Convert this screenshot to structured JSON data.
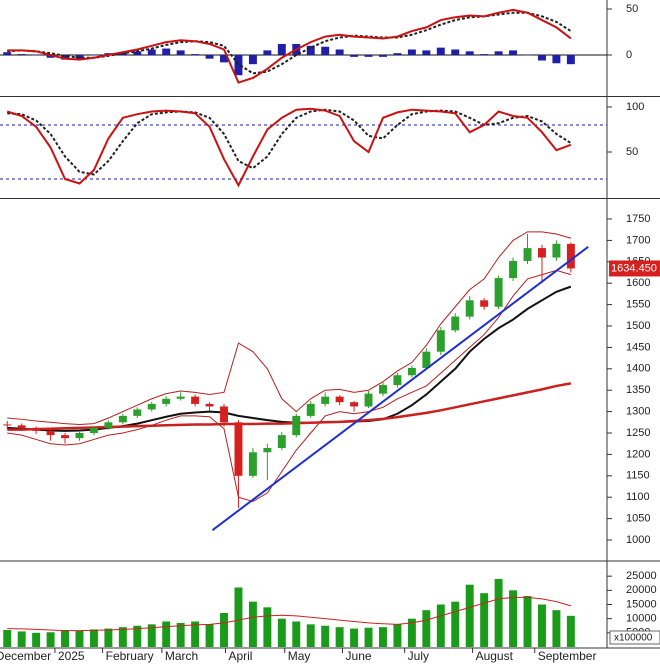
{
  "chart_data": [
    {
      "type": "indicator",
      "ylim": [
        -43.5,
        59.8
      ],
      "yticks": [
        0,
        50
      ],
      "ref_lines": [
        0
      ],
      "series": [
        {
          "kind": "bar",
          "color": "#1f1fa8",
          "values": [
            3,
            1,
            0,
            -3,
            -5,
            -4,
            0,
            2,
            3,
            4,
            6,
            7,
            5,
            1,
            -4,
            -8,
            -22,
            -10,
            5,
            12,
            12,
            10,
            9,
            6,
            -2,
            -2,
            -2,
            2,
            6,
            5,
            8,
            6,
            4,
            1,
            4,
            5,
            0,
            -6,
            -9,
            -10
          ]
        },
        {
          "kind": "line",
          "dash": true,
          "color": "#222222",
          "values": [
            4,
            5,
            4,
            2,
            -1,
            -3,
            -3,
            -1,
            2,
            4,
            7,
            11,
            14,
            15,
            14,
            10,
            -10,
            -20,
            -18,
            -10,
            0,
            8,
            15,
            19,
            21,
            20,
            19,
            19,
            22,
            27,
            33,
            38,
            41,
            42,
            44,
            46,
            46,
            42,
            36,
            26
          ]
        },
        {
          "kind": "line",
          "color": "#cc1111",
          "values": [
            5,
            5,
            4,
            0,
            -4,
            -5,
            -3,
            0,
            3,
            6,
            10,
            14,
            16,
            15,
            12,
            6,
            -30,
            -25,
            -15,
            -3,
            6,
            14,
            20,
            22,
            20,
            19,
            18,
            20,
            26,
            30,
            38,
            41,
            43,
            42,
            46,
            49,
            46,
            38,
            30,
            18
          ]
        }
      ]
    },
    {
      "type": "indicator",
      "ylim": [
        0,
        110
      ],
      "yticks": [
        50,
        100
      ],
      "ref_lines": [
        80,
        20
      ],
      "series": [
        {
          "kind": "line",
          "dash": true,
          "color": "#222222",
          "values": [
            93,
            92,
            85,
            70,
            45,
            28,
            25,
            40,
            62,
            82,
            92,
            94,
            95,
            94,
            88,
            70,
            40,
            32,
            45,
            70,
            88,
            95,
            97,
            95,
            85,
            68,
            65,
            80,
            92,
            95,
            96,
            95,
            88,
            80,
            82,
            88,
            90,
            84,
            70,
            60
          ]
        },
        {
          "kind": "line",
          "color": "#cc1111",
          "values": [
            95,
            90,
            78,
            55,
            20,
            15,
            30,
            65,
            88,
            92,
            95,
            96,
            95,
            93,
            78,
            42,
            13,
            45,
            75,
            88,
            97,
            98,
            96,
            90,
            62,
            50,
            88,
            94,
            97,
            96,
            95,
            93,
            72,
            80,
            95,
            90,
            88,
            72,
            52,
            58
          ]
        }
      ]
    },
    {
      "type": "candlestick",
      "ylim": [
        953.3,
        1794.4
      ],
      "yticks": [
        1000,
        1050,
        1100,
        1150,
        1200,
        1250,
        1300,
        1350,
        1400,
        1450,
        1500,
        1550,
        1600,
        1650,
        1700,
        1750
      ],
      "up_color": "#2ca02c",
      "down_color": "#d62020",
      "open": [
        1270,
        1268,
        1262,
        1255,
        1245,
        1238,
        1250,
        1262,
        1275,
        1290,
        1305,
        1318,
        1330,
        1335,
        1318,
        1312,
        1275,
        1150,
        1205,
        1215,
        1245,
        1290,
        1318,
        1335,
        1322,
        1312,
        1342,
        1362,
        1385,
        1402,
        1440,
        1490,
        1522,
        1560,
        1545,
        1612,
        1652,
        1682,
        1660,
        1692
      ],
      "high": [
        1278,
        1272,
        1265,
        1258,
        1250,
        1255,
        1266,
        1280,
        1295,
        1310,
        1323,
        1336,
        1345,
        1340,
        1322,
        1318,
        1280,
        1215,
        1225,
        1252,
        1295,
        1325,
        1345,
        1338,
        1325,
        1348,
        1368,
        1390,
        1408,
        1448,
        1498,
        1530,
        1570,
        1565,
        1618,
        1660,
        1715,
        1690,
        1700,
        1695
      ],
      "low": [
        1260,
        1255,
        1248,
        1232,
        1225,
        1232,
        1245,
        1258,
        1270,
        1285,
        1300,
        1312,
        1326,
        1312,
        1302,
        1265,
        1075,
        1145,
        1140,
        1210,
        1240,
        1285,
        1312,
        1315,
        1300,
        1308,
        1336,
        1356,
        1380,
        1398,
        1432,
        1485,
        1515,
        1538,
        1540,
        1605,
        1645,
        1600,
        1652,
        1625
      ],
      "close": [
        1268,
        1262,
        1255,
        1245,
        1238,
        1250,
        1262,
        1275,
        1290,
        1305,
        1318,
        1330,
        1335,
        1318,
        1312,
        1275,
        1150,
        1205,
        1215,
        1245,
        1290,
        1318,
        1335,
        1322,
        1312,
        1342,
        1362,
        1385,
        1402,
        1440,
        1490,
        1522,
        1560,
        1545,
        1612,
        1652,
        1682,
        1660,
        1692,
        1634.45
      ],
      "price_tag_label": "1634.450",
      "series": [
        {
          "kind": "line",
          "color": "#b52020",
          "width": 1,
          "values": [
            1285,
            1282,
            1278,
            1275,
            1272,
            1270,
            1272,
            1285,
            1300,
            1315,
            1330,
            1342,
            1348,
            1345,
            1340,
            1345,
            1460,
            1440,
            1400,
            1330,
            1300,
            1330,
            1350,
            1352,
            1345,
            1350,
            1370,
            1395,
            1415,
            1455,
            1505,
            1545,
            1585,
            1610,
            1660,
            1700,
            1720,
            1720,
            1715,
            1705
          ]
        },
        {
          "kind": "line",
          "color": "#b52020",
          "width": 1,
          "values": [
            1250,
            1245,
            1235,
            1225,
            1222,
            1225,
            1235,
            1245,
            1250,
            1258,
            1268,
            1280,
            1290,
            1290,
            1288,
            1260,
            1100,
            1090,
            1110,
            1160,
            1210,
            1250,
            1290,
            1300,
            1295,
            1300,
            1310,
            1330,
            1345,
            1360,
            1390,
            1420,
            1450,
            1480,
            1520,
            1570,
            1610,
            1620,
            1630,
            1620
          ]
        },
        {
          "kind": "line",
          "color": "#111111",
          "width": 2,
          "values": [
            1262,
            1260,
            1258,
            1256,
            1255,
            1256,
            1258,
            1262,
            1266,
            1272,
            1280,
            1288,
            1295,
            1298,
            1300,
            1298,
            1290,
            1285,
            1280,
            1276,
            1274,
            1274,
            1275,
            1276,
            1277,
            1278,
            1282,
            1295,
            1315,
            1340,
            1370,
            1400,
            1440,
            1470,
            1495,
            1515,
            1540,
            1560,
            1580,
            1592
          ]
        },
        {
          "kind": "line",
          "color": "#cc1f1f",
          "width": 2.5,
          "values": [
            1258,
            1258,
            1259,
            1260,
            1261,
            1262,
            1263,
            1264,
            1265,
            1266,
            1267,
            1268,
            1269,
            1270,
            1270,
            1271,
            1271,
            1271,
            1272,
            1272,
            1273,
            1274,
            1275,
            1276,
            1278,
            1280,
            1283,
            1287,
            1292,
            1297,
            1303,
            1310,
            1317,
            1324,
            1331,
            1338,
            1345,
            1352,
            1360,
            1366
          ]
        }
      ],
      "trendline": {
        "color": "#1f2fcf",
        "x": [
          14.2,
          40.2
        ],
        "y": [
          1023,
          1685
        ]
      }
    },
    {
      "type": "bar",
      "ylim": [
        0,
        30000
      ],
      "yticks": [
        5000,
        10000,
        15000,
        20000,
        25000
      ],
      "unit_label": "x100000",
      "xlim": [
        -0.5,
        41.5
      ],
      "xticks": [
        {
          "value": -1.0,
          "label": "December"
        },
        {
          "value": 3.3,
          "label": "2025"
        },
        {
          "value": 6.6,
          "label": "February"
        },
        {
          "value": 10.7,
          "label": "March"
        },
        {
          "value": 15.1,
          "label": "April"
        },
        {
          "value": 19.2,
          "label": "May"
        },
        {
          "value": 23.2,
          "label": "June"
        },
        {
          "value": 27.5,
          "label": "July"
        },
        {
          "value": 32.2,
          "label": "August"
        },
        {
          "value": 36.5,
          "label": "September"
        }
      ],
      "series": [
        {
          "kind": "bar",
          "color": "#1a9c1a",
          "values": [
            6000,
            5500,
            5000,
            5200,
            6000,
            5800,
            6200,
            6500,
            7000,
            7500,
            8000,
            9000,
            8500,
            9000,
            8000,
            12000,
            21000,
            16000,
            14000,
            10000,
            9000,
            8000,
            7500,
            7000,
            6500,
            6800,
            7000,
            8000,
            10000,
            13000,
            15000,
            16000,
            22000,
            19000,
            24000,
            20000,
            18000,
            15000,
            13000,
            11000
          ]
        },
        {
          "kind": "line",
          "color": "#cc2222",
          "width": 1,
          "values": [
            6500,
            6400,
            6200,
            6000,
            5800,
            5800,
            5900,
            6000,
            6200,
            6500,
            6800,
            7200,
            7500,
            7800,
            8000,
            8500,
            9500,
            10500,
            11000,
            11200,
            11000,
            10500,
            10000,
            9500,
            9000,
            8500,
            8200,
            8000,
            8500,
            9500,
            11000,
            12500,
            14000,
            15500,
            17000,
            17500,
            17500,
            17000,
            16000,
            14500
          ]
        }
      ]
    }
  ]
}
